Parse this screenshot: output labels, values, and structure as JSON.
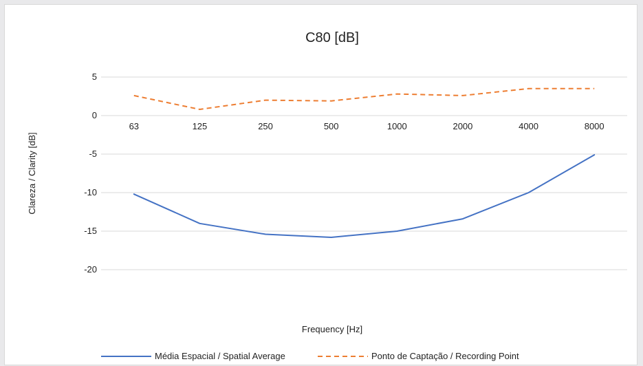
{
  "chart_data": {
    "type": "line",
    "title": "C80 [dB]",
    "xlabel": "Frequency [Hz]",
    "ylabel": "Clareza / Clarity [dB]",
    "categories": [
      "63",
      "125",
      "250",
      "500",
      "1000",
      "2000",
      "4000",
      "8000"
    ],
    "ylim": [
      -20,
      5
    ],
    "yticks": [
      5,
      0,
      -5,
      -10,
      -15,
      -20
    ],
    "ytick_labels": [
      "5",
      "0",
      "-5",
      "-10",
      "-15",
      "-20"
    ],
    "grid": true,
    "legend_position": "bottom",
    "series": [
      {
        "name": "Média Espacial / Spatial Average",
        "values": [
          -10.2,
          -14.0,
          -15.4,
          -15.8,
          -15.0,
          -13.4,
          -10.0,
          -5.1
        ],
        "color": "#4472c4",
        "dash": "solid"
      },
      {
        "name": "Ponto de Captação / Recording Point",
        "values": [
          2.6,
          0.8,
          2.0,
          1.9,
          2.8,
          2.6,
          3.5,
          3.5
        ],
        "color": "#ed7d31",
        "dash": "dashed"
      }
    ]
  }
}
